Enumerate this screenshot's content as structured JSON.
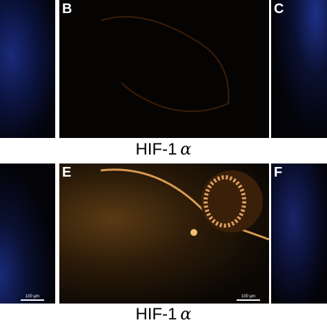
{
  "top_row": {
    "panels": [
      {
        "label": "B"
      },
      {
        "label": "C"
      }
    ],
    "caption": {
      "text": "HIF-1",
      "symbol": "α"
    }
  },
  "bottom_row": {
    "panels": [
      {
        "label": "E"
      },
      {
        "label": "F"
      }
    ],
    "scale_bars": [
      "100 μm",
      "100 μm"
    ],
    "caption": {
      "text": "HIF-1",
      "symbol": "α"
    }
  }
}
